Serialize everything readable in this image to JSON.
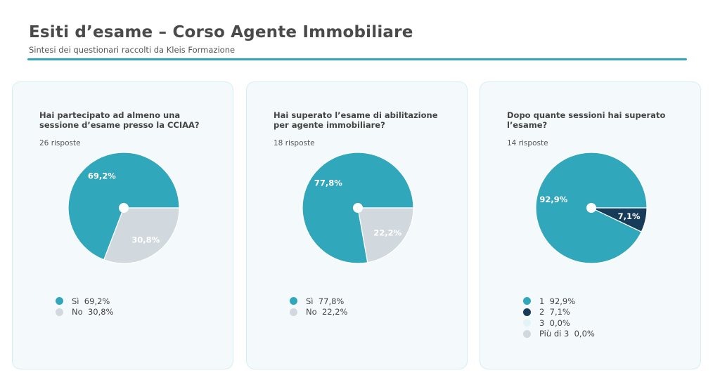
{
  "header": {
    "title": "Esiti d’esame – Corso Agente Immobiliare",
    "subtitle": "Sintesi dei questionari raccolti da Kleis Formazione"
  },
  "chart_data": [
    {
      "type": "pie",
      "question": "Hai partecipato ad almeno una sessione d’esame presso la CCIAA?",
      "responses": "26 risposte",
      "categories": [
        "Sì",
        "No"
      ],
      "values": [
        69.2,
        30.8
      ],
      "value_labels": [
        "69,2%",
        "30,8%"
      ],
      "colors": [
        "#31a7bb",
        "#d1d9de"
      ],
      "label_colors": [
        "#ffffff",
        "#ffffff"
      ]
    },
    {
      "type": "pie",
      "question": "Hai superato l’esame di abilitazione per agente immobiliare?",
      "responses": "18 risposte",
      "categories": [
        "Sì",
        "No"
      ],
      "values": [
        77.8,
        22.2
      ],
      "value_labels": [
        "77,8%",
        "22,2%"
      ],
      "colors": [
        "#31a7bb",
        "#d1d9de"
      ],
      "label_colors": [
        "#ffffff",
        "#ffffff"
      ]
    },
    {
      "type": "pie",
      "question": "Dopo quante sessioni hai superato l’esame?",
      "responses": "14 risposte",
      "categories": [
        "1",
        "2",
        "3",
        "Più di 3"
      ],
      "values": [
        92.9,
        7.1,
        0.0,
        0.0
      ],
      "value_labels": [
        "92,9%",
        "7,1%",
        "0,0%",
        "0,0%"
      ],
      "colors": [
        "#31a7bb",
        "#173c5a",
        "#e3f3f6",
        "#d1d9de"
      ],
      "label_colors": [
        "#ffffff",
        "#ffffff",
        "#ffffff",
        "#ffffff"
      ]
    }
  ],
  "legends": [
    [
      "Sì  69,2%",
      "No  30,8%"
    ],
    [
      "Sì  77,8%",
      "No  22,2%"
    ],
    [
      "1  92,9%",
      "2  7,1%",
      "3  0,0%",
      "Più di 3  0,0%"
    ]
  ]
}
